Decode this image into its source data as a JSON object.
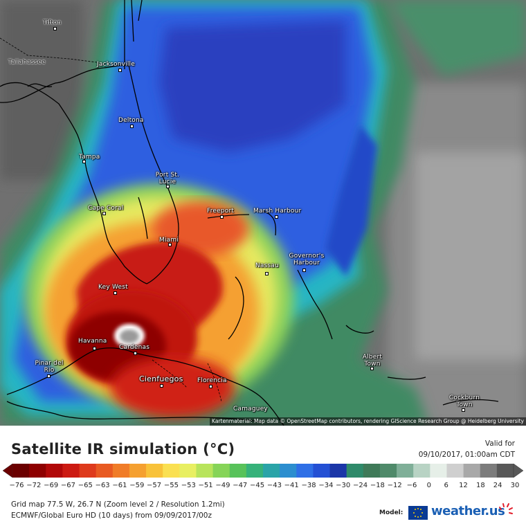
{
  "map": {
    "cities": [
      {
        "name": "Tifton",
        "label": "Tifton"
      },
      {
        "name": "Tallahassee",
        "label": "Tallahassee"
      },
      {
        "name": "Jacksonville",
        "label": "Jacksonville"
      },
      {
        "name": "Deltona",
        "label": "Deltona"
      },
      {
        "name": "Tampa",
        "label": "Tampa"
      },
      {
        "name": "Port St. Lucie",
        "label": "Port St. Lucie"
      },
      {
        "name": "Cape Coral",
        "label": "Cape Coral"
      },
      {
        "name": "Freeport",
        "label": "Freeport"
      },
      {
        "name": "Marsh Harbour",
        "label": "Marsh Harbour"
      },
      {
        "name": "Miami",
        "label": "Miami"
      },
      {
        "name": "Nassau",
        "label": "Nassau"
      },
      {
        "name": "Governor's Harbour",
        "label": "Governor's Harbour"
      },
      {
        "name": "Key West",
        "label": "Key West"
      },
      {
        "name": "Havanna",
        "label": "Havanna"
      },
      {
        "name": "Cardenas",
        "label": "Cardenas"
      },
      {
        "name": "Pinar del Rio",
        "label": "Pinar del Rio"
      },
      {
        "name": "Cienfuegos",
        "label": "Cienfuegos"
      },
      {
        "name": "Florencia",
        "label": "Florencia"
      },
      {
        "name": "Camaguey",
        "label": "Camaguey"
      },
      {
        "name": "Albert Town",
        "label": "Albert Town"
      },
      {
        "name": "Cockburn Town",
        "label": "Cockburn Town"
      }
    ],
    "attribution": "Kartenmaterial: Map data © OpenStreetMap contributors, rendering GIScience Research Group @ Heidelberg University"
  },
  "legend": {
    "title": "Satellite IR simulation (°C)",
    "valid_label": "Valid for",
    "valid_date": "09/10/2017, 01:00am CDT",
    "ticks": [
      "-76",
      "-72",
      "-69",
      "-67",
      "-65",
      "-63",
      "-61",
      "-59",
      "-57",
      "-55",
      "-53",
      "-51",
      "-49",
      "-47",
      "-45",
      "-43",
      "-41",
      "-38",
      "-34",
      "-30",
      "-24",
      "-18",
      "-12",
      "-6",
      "0",
      "6",
      "12",
      "18",
      "24",
      "30"
    ],
    "colors": [
      "#6b0000",
      "#8e0000",
      "#b10808",
      "#cc1a12",
      "#de3a1c",
      "#e85a22",
      "#f07c28",
      "#f5a030",
      "#f8c23a",
      "#fae052",
      "#e8ef62",
      "#b8e45c",
      "#86d458",
      "#58c25a",
      "#36b27a",
      "#2aa4a8",
      "#2c8ecf",
      "#2f6fe6",
      "#2450d4",
      "#1b36a8",
      "#2f8a6a",
      "#3f7a58",
      "#4f8a6a",
      "#7faf98",
      "#b8d3c4",
      "#e6efe8",
      "#cfcfcf",
      "#a8a8a8",
      "#7c7c7c",
      "#585858"
    ]
  },
  "footer": {
    "grid_info": "Grid map 77.5 W, 26.7 N (Zoom level 2 / Resolution 1.2mi)",
    "model_info": "ECMWF/Global Euro HD (10 days) from 09/09/2017/00z",
    "model_label": "Model:",
    "brand": "weather.us"
  }
}
